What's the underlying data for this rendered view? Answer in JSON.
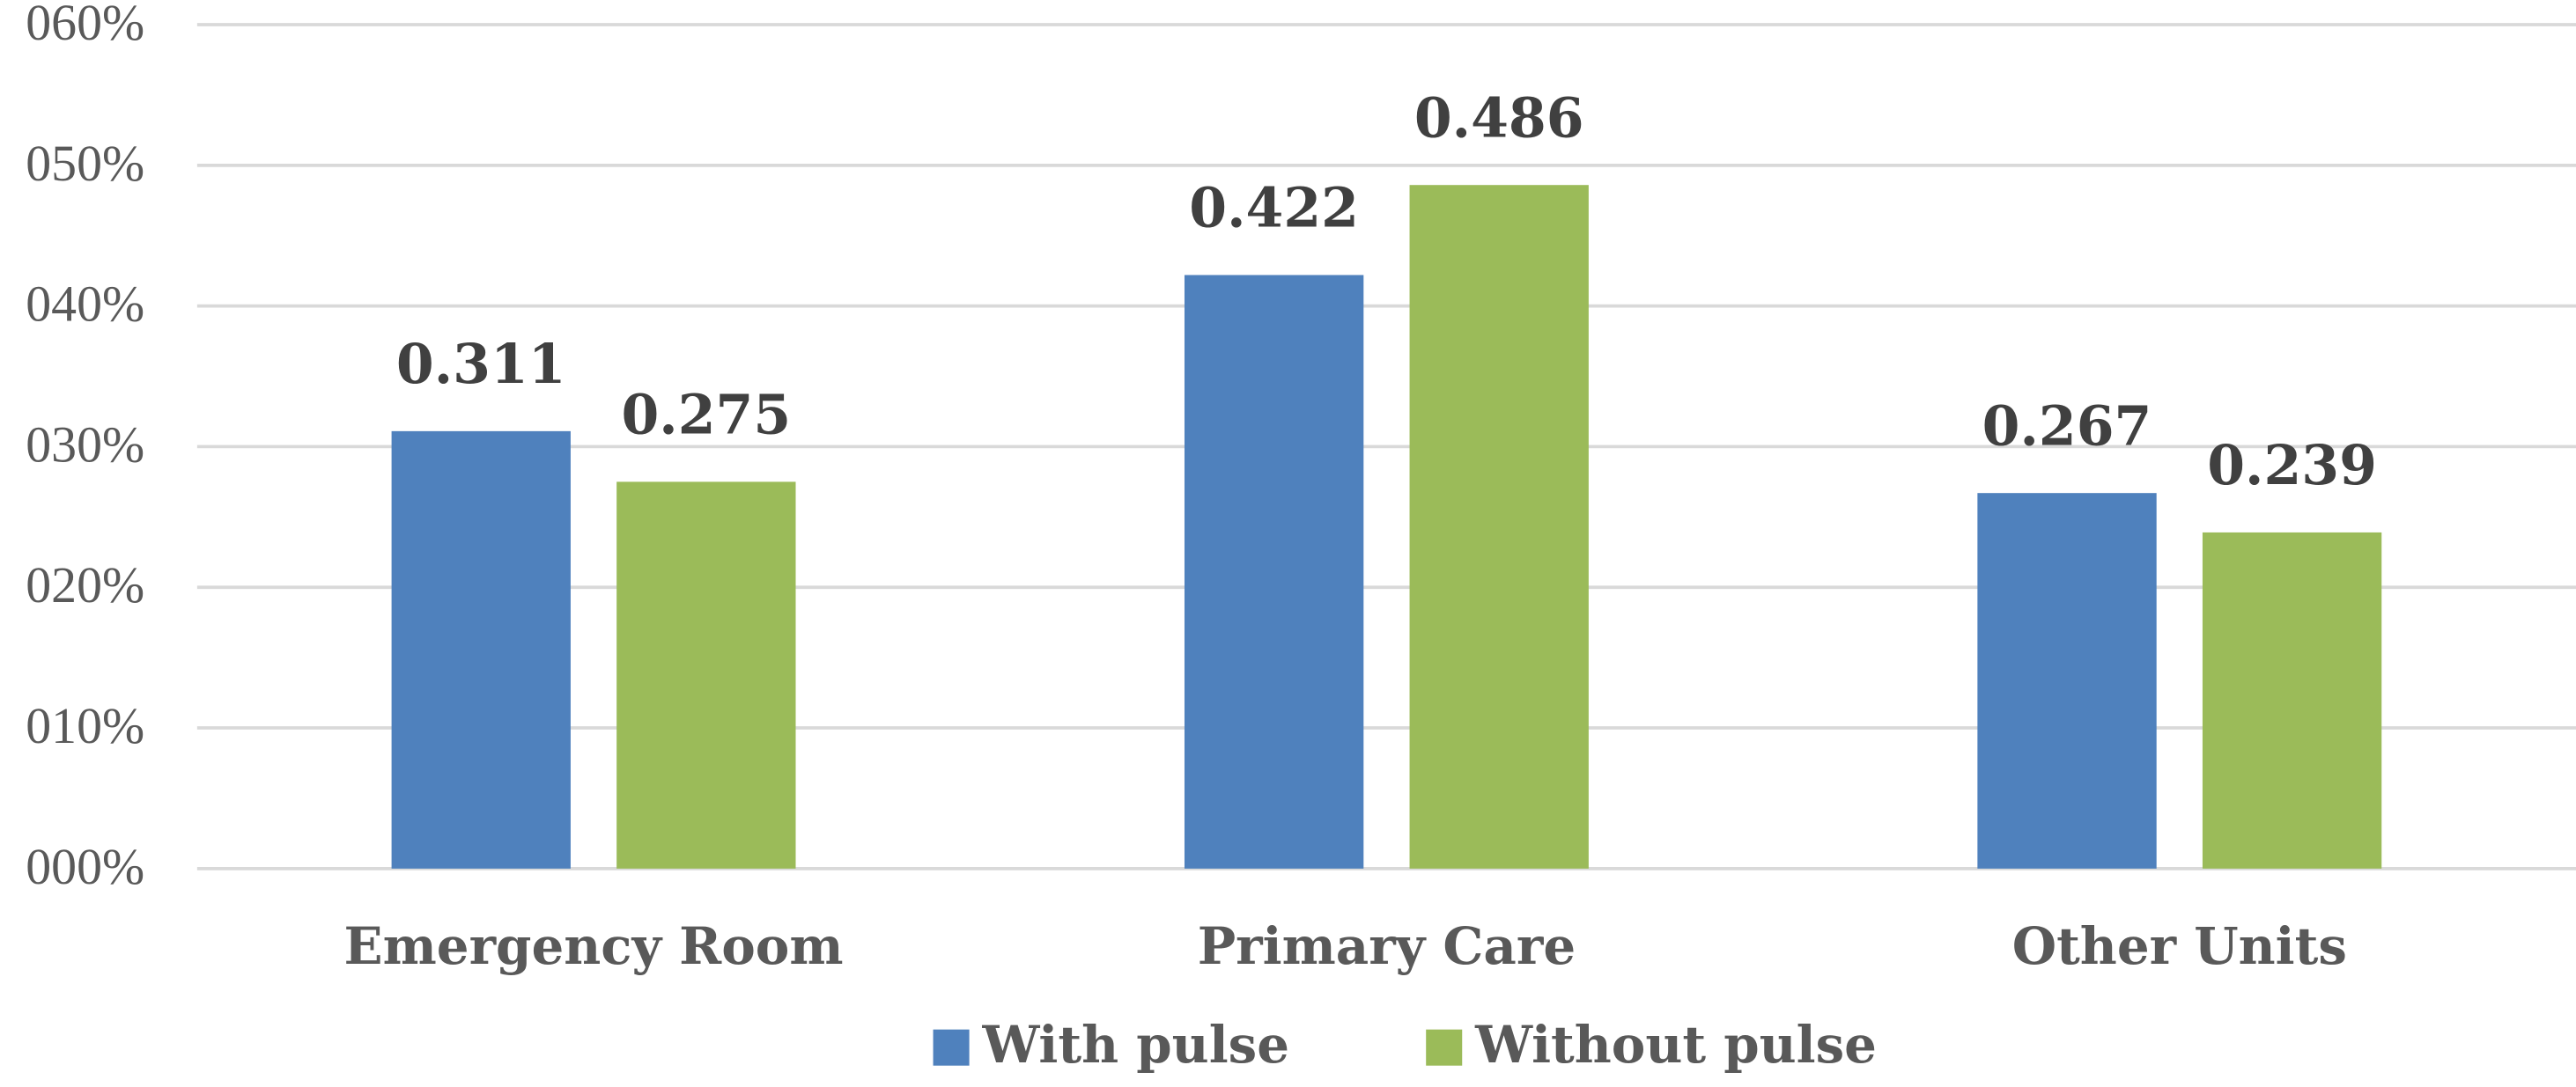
{
  "chart_data": {
    "type": "bar",
    "categories": [
      "Emergency Room",
      "Primary Care",
      "Other Units"
    ],
    "series": [
      {
        "name": "With pulse",
        "color": "#4f81bd",
        "values": [
          0.311,
          0.422,
          0.267
        ]
      },
      {
        "name": "Without pulse",
        "color": "#9bbb59",
        "values": [
          0.275,
          0.486,
          0.239
        ]
      }
    ],
    "ylim": [
      0,
      0.6
    ],
    "yticks": [
      {
        "value": 0,
        "label": "000%"
      },
      {
        "value": 0.1,
        "label": "010%"
      },
      {
        "value": 0.2,
        "label": "020%"
      },
      {
        "value": 0.3,
        "label": "030%"
      },
      {
        "value": 0.4,
        "label": "040%"
      },
      {
        "value": 0.5,
        "label": "050%"
      },
      {
        "value": 0.6,
        "label": "060%"
      }
    ],
    "grid": true,
    "legend": "bottom"
  }
}
